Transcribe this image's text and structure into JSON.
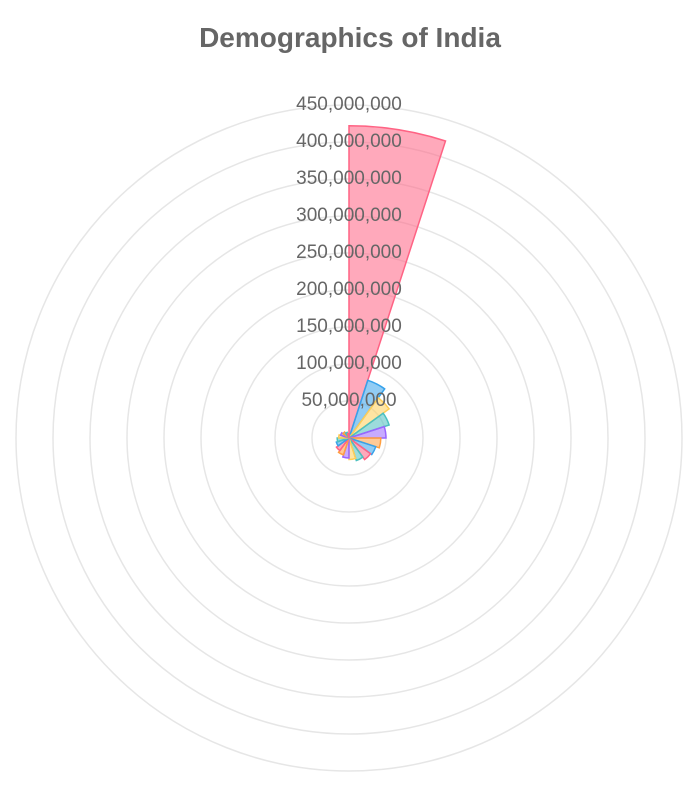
{
  "chart_data": {
    "type": "polarArea",
    "title": "Demographics of India",
    "axis": {
      "min": 0,
      "max": 450000000,
      "step": 50000000,
      "grid": true,
      "tick_labels": [
        "50,000,000",
        "100,000,000",
        "150,000,000",
        "200,000,000",
        "250,000,000",
        "300,000,000",
        "350,000,000",
        "400,000,000",
        "450,000,000"
      ]
    },
    "values": [
      422000000,
      82000000,
      67000000,
      57000000,
      50000000,
      43000000,
      38000000,
      36000000,
      32000000,
      29000000,
      27000000,
      24000000,
      21000000,
      18000000,
      16000000,
      14000000,
      12000000,
      10000000,
      8000000,
      6000000
    ],
    "colors": [
      "#ff6384",
      "#36a2eb",
      "#ffcd56",
      "#4bc0c0",
      "#9966ff",
      "#ff9f40",
      "#36a2eb",
      "#ff6384",
      "#4bc0c0",
      "#ffcd56",
      "#9966ff",
      "#ff9f40",
      "#ff6384",
      "#36a2eb",
      "#4bc0c0",
      "#ffcd56",
      "#9966ff",
      "#ff9f40",
      "#4bc0c0",
      "#ff6384"
    ]
  }
}
